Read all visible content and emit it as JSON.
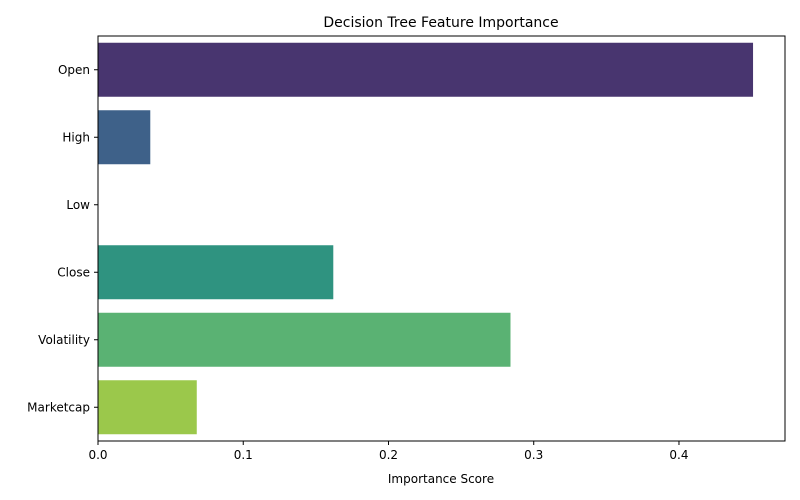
{
  "chart_data": {
    "type": "bar",
    "orientation": "horizontal",
    "title": "Decision Tree Feature Importance",
    "xlabel": "Importance Score",
    "ylabel": "",
    "xlim": [
      0,
      0.473
    ],
    "xticks": [
      "0.0",
      "0.1",
      "0.2",
      "0.3",
      "0.4"
    ],
    "categories": [
      "Open",
      "High",
      "Low",
      "Close",
      "Volatility",
      "Marketcap"
    ],
    "values": [
      0.451,
      0.036,
      0.0,
      0.162,
      0.284,
      0.068
    ],
    "colors": [
      "#48356f",
      "#3e6189",
      "#38818e",
      "#2f9380",
      "#5ab273",
      "#9bc84b"
    ],
    "grid": false,
    "legend": "none"
  }
}
